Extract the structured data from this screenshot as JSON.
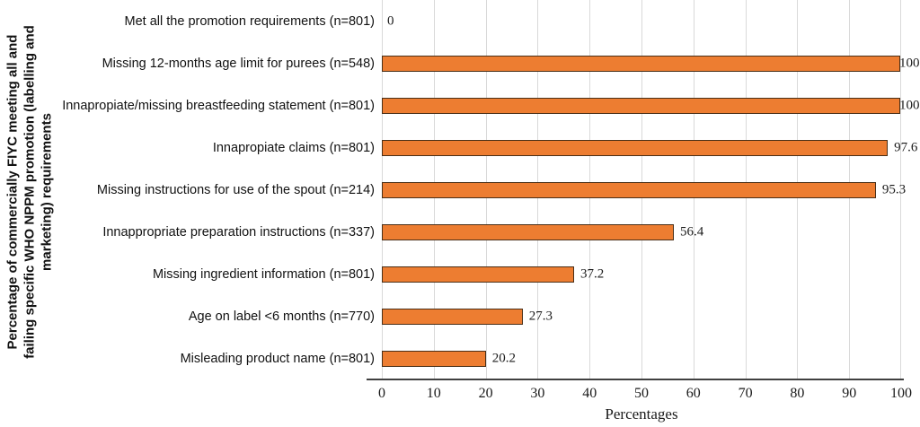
{
  "chart_data": {
    "type": "bar",
    "orientation": "horizontal",
    "categories": [
      "Met all the promotion requirements (n=801)",
      "Missing 12-months age limit for purees (n=548)",
      "Innapropiate/missing breastfeeding statement (n=801)",
      "Innapropiate claims (n=801)",
      "Missing instructions for use of the spout (n=214)",
      "Innappropriate preparation instructions (n=337)",
      "Missing ingredient information (n=801)",
      "Age on label <6 months (n=770)",
      "Misleading product name (n=801)"
    ],
    "values": [
      0,
      100,
      100,
      97.6,
      95.3,
      56.4,
      37.2,
      27.3,
      20.2
    ],
    "value_labels": [
      "0",
      "100",
      "100",
      "97.6",
      "95.3",
      "56.4",
      "37.2",
      "27.3",
      "20.2"
    ],
    "xlabel": "Percentages",
    "ylabel_lines": [
      "Percentage of commercially FIYC meeting all and",
      "failing specific WHO NPPM promotion (labelling and",
      "marketing) requirements"
    ],
    "xlim": [
      0,
      100
    ],
    "xticks": [
      "0",
      "10",
      "20",
      "30",
      "40",
      "50",
      "60",
      "70",
      "80",
      "90",
      "100"
    ],
    "grid": "vertical-gridlines-on",
    "legend": "none",
    "colors": {
      "bar_fill": "#ED7D31",
      "bar_border": "#4A2F17",
      "gridline": "#D9D9D9",
      "axis_line": "#404040"
    }
  }
}
